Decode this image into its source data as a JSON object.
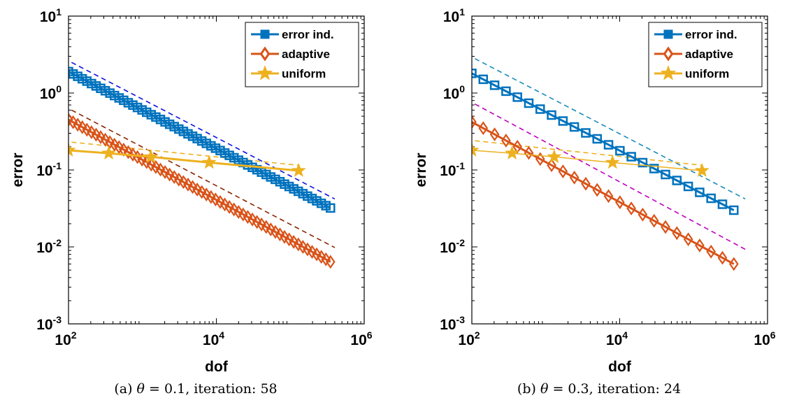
{
  "chart_data": [
    {
      "type": "line",
      "caption": {
        "prefix": "(a) ",
        "theta_symbol": "θ",
        "rest": " = 0.1, iteration: 58"
      },
      "xlabel": "dof",
      "ylabel": "error",
      "xscale": "log",
      "yscale": "log",
      "xlim": [
        100,
        1000000
      ],
      "ylim": [
        0.001,
        10
      ],
      "xticks": [
        {
          "base": "10",
          "exp": "2",
          "value": 100
        },
        {
          "base": "10",
          "exp": "4",
          "value": 10000
        },
        {
          "base": "10",
          "exp": "6",
          "value": 1000000
        }
      ],
      "yticks": [
        {
          "base": "10",
          "exp": "1",
          "value": 10
        },
        {
          "base": "10",
          "exp": "0",
          "value": 1
        },
        {
          "base": "10",
          "exp": "-1",
          "value": 0.1
        },
        {
          "base": "10",
          "exp": "-2",
          "value": 0.01
        },
        {
          "base": "10",
          "exp": "-3",
          "value": 0.001
        }
      ],
      "grid": false,
      "legend_position": "top-right",
      "series": [
        {
          "name": "error ind.",
          "color": "#0072BD",
          "marker": "square",
          "line_width": 3,
          "x_range": [
            100,
            350000
          ],
          "y_range": [
            1.9,
            0.032
          ],
          "num_points": 58
        },
        {
          "name": "adaptive",
          "color": "#D95319",
          "marker": "diamond",
          "line_width": 3,
          "x_range": [
            100,
            350000
          ],
          "y_range": [
            0.45,
            0.0064
          ],
          "num_points": 58
        },
        {
          "name": "uniform",
          "color": "#EDB120",
          "marker": "star",
          "line_width": 3,
          "x": [
            100,
            350,
            1300,
            8000,
            130000
          ],
          "y": [
            0.18,
            0.165,
            0.148,
            0.125,
            0.098
          ]
        }
      ],
      "reference_lines": [
        {
          "color": "#1010E0",
          "x": [
            110,
            400000
          ],
          "y": [
            2.5,
            0.042
          ]
        },
        {
          "color": "#8B2500",
          "x": [
            110,
            400000
          ],
          "y": [
            0.6,
            0.0098
          ]
        },
        {
          "color": "#EDB120",
          "x": [
            110,
            130000
          ],
          "y": [
            0.23,
            0.115
          ]
        }
      ]
    },
    {
      "type": "line",
      "caption": {
        "prefix": "(b) ",
        "theta_symbol": "θ",
        "rest": " = 0.3, iteration: 24"
      },
      "xlabel": "dof",
      "ylabel": "error",
      "xscale": "log",
      "yscale": "log",
      "xlim": [
        100,
        1000000
      ],
      "ylim": [
        0.001,
        10
      ],
      "xticks": [
        {
          "base": "10",
          "exp": "2",
          "value": 100
        },
        {
          "base": "10",
          "exp": "4",
          "value": 10000
        },
        {
          "base": "10",
          "exp": "6",
          "value": 1000000
        }
      ],
      "yticks": [
        {
          "base": "10",
          "exp": "1",
          "value": 10
        },
        {
          "base": "10",
          "exp": "0",
          "value": 1
        },
        {
          "base": "10",
          "exp": "-1",
          "value": 0.1
        },
        {
          "base": "10",
          "exp": "-2",
          "value": 0.01
        },
        {
          "base": "10",
          "exp": "-3",
          "value": 0.001
        }
      ],
      "grid": false,
      "legend_position": "top-right",
      "series": [
        {
          "name": "error ind.",
          "color": "#0072BD",
          "marker": "square",
          "line_width": 3,
          "x_range": [
            100,
            350000
          ],
          "y_range": [
            1.8,
            0.03
          ],
          "num_points": 24
        },
        {
          "name": "adaptive",
          "color": "#D95319",
          "marker": "diamond",
          "line_width": 3,
          "x_range": [
            100,
            350000
          ],
          "y_range": [
            0.42,
            0.006
          ],
          "num_points": 24
        },
        {
          "name": "uniform",
          "color": "#EDB120",
          "marker": "star",
          "line_width": 1.5,
          "x": [
            100,
            350,
            1300,
            8000,
            130000
          ],
          "y": [
            0.18,
            0.165,
            0.148,
            0.125,
            0.098
          ]
        }
      ],
      "reference_lines": [
        {
          "color": "#1A8BB8",
          "x": [
            110,
            500000
          ],
          "y": [
            2.8,
            0.042
          ]
        },
        {
          "color": "#C000C0",
          "x": [
            110,
            500000
          ],
          "y": [
            0.72,
            0.0093
          ]
        },
        {
          "color": "#EDB120",
          "x": [
            110,
            130000
          ],
          "y": [
            0.24,
            0.115
          ]
        }
      ]
    }
  ]
}
